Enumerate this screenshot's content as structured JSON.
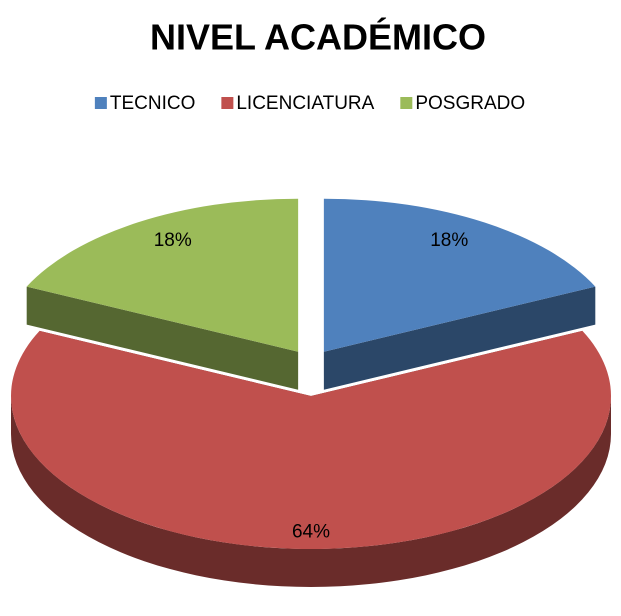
{
  "chart_data": {
    "type": "pie",
    "title": "NIVEL ACADÉMICO",
    "categories": [
      "TECNICO",
      "LICENCIATURA",
      "POSGRADO"
    ],
    "values": [
      18,
      64,
      18
    ],
    "value_labels": [
      "18%",
      "64%",
      "18%"
    ],
    "colors": [
      "#4f81bd",
      "#c0504d",
      "#9bbb59"
    ],
    "legend": "top"
  }
}
